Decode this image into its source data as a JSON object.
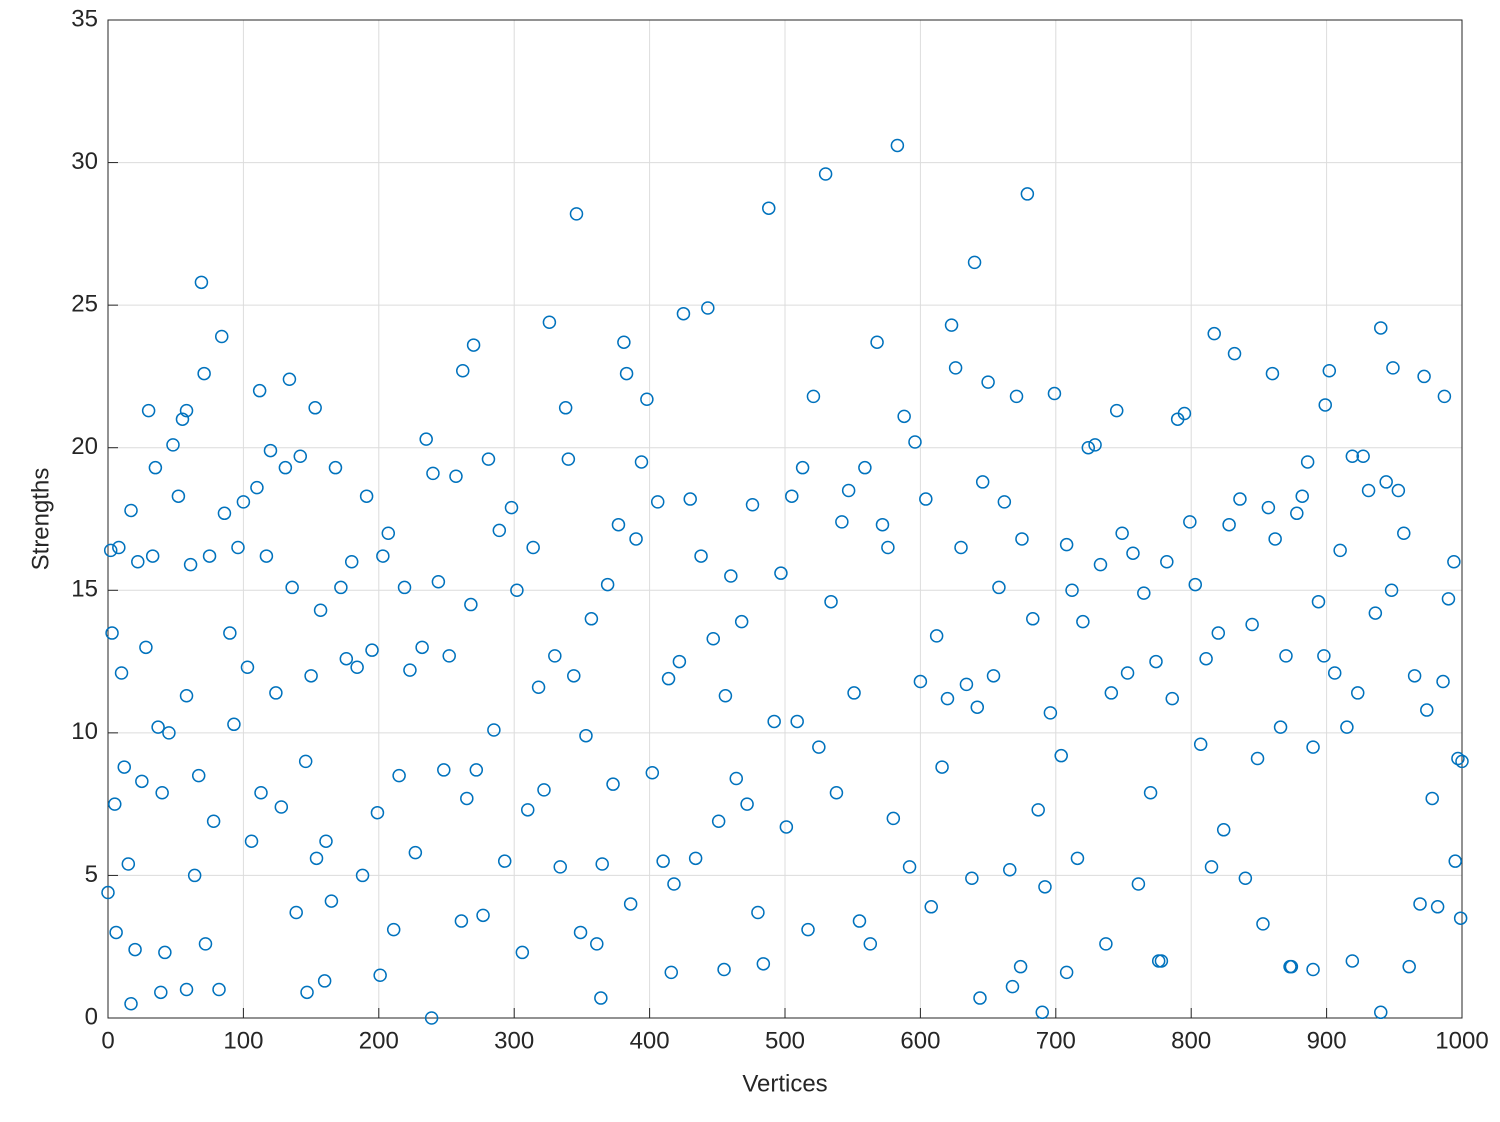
{
  "chart_data": {
    "type": "scatter",
    "x_label": "Vertices",
    "y_label": "Strengths",
    "xlim": [
      0,
      1000
    ],
    "ylim": [
      0,
      35
    ],
    "xticks": [
      0,
      100,
      200,
      300,
      400,
      500,
      600,
      700,
      800,
      900,
      1000
    ],
    "yticks": [
      0,
      5,
      10,
      15,
      20,
      25,
      30,
      35
    ],
    "grid": true,
    "series": [
      {
        "color": "#0072bd",
        "x": [
          583,
          530,
          679,
          488,
          346,
          640,
          69,
          443,
          425,
          326,
          623,
          940,
          817,
          84,
          568,
          381,
          270,
          832,
          71,
          262,
          383,
          860,
          949,
          972,
          134,
          626,
          650,
          902,
          112,
          987,
          699,
          521,
          398,
          30,
          745,
          153,
          338,
          899,
          671,
          58,
          0,
          2,
          3,
          5,
          6,
          8,
          10,
          12,
          15,
          17,
          20,
          22,
          25,
          28,
          33,
          35,
          37,
          40,
          42,
          45,
          48,
          52,
          55,
          58,
          61,
          64,
          67,
          72,
          75,
          78,
          82,
          86,
          90,
          93,
          96,
          100,
          103,
          106,
          110,
          113,
          117,
          120,
          124,
          128,
          131,
          136,
          139,
          142,
          146,
          150,
          154,
          157,
          161,
          165,
          168,
          172,
          176,
          180,
          184,
          188,
          191,
          195,
          199,
          203,
          207,
          211,
          215,
          219,
          223,
          227,
          232,
          235,
          240,
          244,
          248,
          252,
          257,
          261,
          265,
          268,
          272,
          277,
          281,
          285,
          289,
          293,
          298,
          302,
          306,
          310,
          314,
          318,
          322,
          330,
          334,
          340,
          344,
          349,
          353,
          357,
          361,
          365,
          369,
          373,
          377,
          386,
          390,
          394,
          402,
          406,
          410,
          414,
          418,
          422,
          430,
          434,
          438,
          447,
          451,
          456,
          460,
          464,
          468,
          472,
          476,
          480,
          484,
          492,
          497,
          501,
          505,
          509,
          513,
          517,
          525,
          534,
          538,
          542,
          547,
          551,
          555,
          559,
          563,
          572,
          576,
          580,
          588,
          592,
          596,
          600,
          604,
          608,
          612,
          616,
          620,
          630,
          634,
          638,
          642,
          646,
          654,
          658,
          662,
          666,
          675,
          683,
          687,
          692,
          696,
          704,
          708,
          712,
          716,
          720,
          724,
          729,
          733,
          737,
          741,
          749,
          753,
          757,
          761,
          765,
          770,
          774,
          778,
          782,
          786,
          790,
          795,
          799,
          803,
          807,
          811,
          815,
          820,
          824,
          828,
          836,
          840,
          845,
          849,
          853,
          857,
          862,
          866,
          870,
          874,
          878,
          882,
          886,
          890,
          894,
          898,
          906,
          910,
          915,
          919,
          923,
          927,
          931,
          936,
          944,
          948,
          953,
          957,
          961,
          965,
          969,
          974,
          978,
          982,
          986,
          990,
          994,
          997,
          999,
          1000,
          995,
          239,
          690,
          940,
          364,
          644,
          17,
          39,
          58,
          147,
          160,
          201,
          416,
          455,
          708,
          668,
          674,
          873,
          776,
          919,
          890
        ],
        "values": [
          30.6,
          29.6,
          28.9,
          28.4,
          28.2,
          26.5,
          25.8,
          24.9,
          24.7,
          24.4,
          24.3,
          24.2,
          24.0,
          23.9,
          23.7,
          23.7,
          23.6,
          23.3,
          22.6,
          22.7,
          22.6,
          22.6,
          22.8,
          22.5,
          22.4,
          22.8,
          22.3,
          22.7,
          22.0,
          21.8,
          21.9,
          21.8,
          21.7,
          21.3,
          21.3,
          21.4,
          21.4,
          21.5,
          21.8,
          21.3,
          4.4,
          16.4,
          13.5,
          7.5,
          3.0,
          16.5,
          12.1,
          8.8,
          5.4,
          17.8,
          2.4,
          16.0,
          8.3,
          13.0,
          16.2,
          19.3,
          10.2,
          7.9,
          2.3,
          10.0,
          20.1,
          18.3,
          21.0,
          11.3,
          15.9,
          5.0,
          8.5,
          2.6,
          16.2,
          6.9,
          1.0,
          17.7,
          13.5,
          10.3,
          16.5,
          18.1,
          12.3,
          6.2,
          18.6,
          7.9,
          16.2,
          19.9,
          11.4,
          7.4,
          19.3,
          15.1,
          3.7,
          19.7,
          9.0,
          12.0,
          5.6,
          14.3,
          6.2,
          4.1,
          19.3,
          15.1,
          12.6,
          16.0,
          12.3,
          5.0,
          18.3,
          12.9,
          7.2,
          16.2,
          17.0,
          3.1,
          8.5,
          15.1,
          12.2,
          5.8,
          13.0,
          20.3,
          19.1,
          15.3,
          8.7,
          12.7,
          19.0,
          3.4,
          7.7,
          14.5,
          8.7,
          3.6,
          19.6,
          10.1,
          17.1,
          5.5,
          17.9,
          15.0,
          2.3,
          7.3,
          16.5,
          11.6,
          8.0,
          12.7,
          5.3,
          19.6,
          12.0,
          3.0,
          9.9,
          14.0,
          2.6,
          5.4,
          15.2,
          8.2,
          17.3,
          4.0,
          16.8,
          19.5,
          8.6,
          18.1,
          5.5,
          11.9,
          4.7,
          12.5,
          18.2,
          5.6,
          16.2,
          13.3,
          6.9,
          11.3,
          15.5,
          8.4,
          13.9,
          7.5,
          18.0,
          3.7,
          1.9,
          10.4,
          15.6,
          6.7,
          18.3,
          10.4,
          19.3,
          3.1,
          9.5,
          14.6,
          7.9,
          17.4,
          18.5,
          11.4,
          3.4,
          19.3,
          2.6,
          17.3,
          16.5,
          7.0,
          21.1,
          5.3,
          20.2,
          11.8,
          18.2,
          3.9,
          13.4,
          8.8,
          11.2,
          16.5,
          11.7,
          4.9,
          10.9,
          18.8,
          12.0,
          15.1,
          18.1,
          5.2,
          16.8,
          14.0,
          7.3,
          4.6,
          10.7,
          9.2,
          16.6,
          15.0,
          5.6,
          13.9,
          20.0,
          20.1,
          15.9,
          2.6,
          11.4,
          17.0,
          12.1,
          16.3,
          4.7,
          14.9,
          7.9,
          12.5,
          2.0,
          16.0,
          11.2,
          21.0,
          21.2,
          17.4,
          15.2,
          9.6,
          12.6,
          5.3,
          13.5,
          6.6,
          17.3,
          18.2,
          4.9,
          13.8,
          9.1,
          3.3,
          17.9,
          16.8,
          10.2,
          12.7,
          1.8,
          17.7,
          18.3,
          19.5,
          9.5,
          14.6,
          12.7,
          12.1,
          16.4,
          10.2,
          19.7,
          11.4,
          19.7,
          18.5,
          14.2,
          18.8,
          15.0,
          18.5,
          17.0,
          1.8,
          12.0,
          4.0,
          10.8,
          7.7,
          3.9,
          11.8,
          14.7,
          16.0,
          9.1,
          3.5,
          9.0,
          5.5,
          0.0,
          0.2,
          0.2,
          0.7,
          0.7,
          0.5,
          0.9,
          1.0,
          0.9,
          1.3,
          1.5,
          1.6,
          1.7,
          1.6,
          1.1,
          1.8,
          1.8,
          2.0,
          2.0,
          1.7
        ]
      }
    ]
  }
}
